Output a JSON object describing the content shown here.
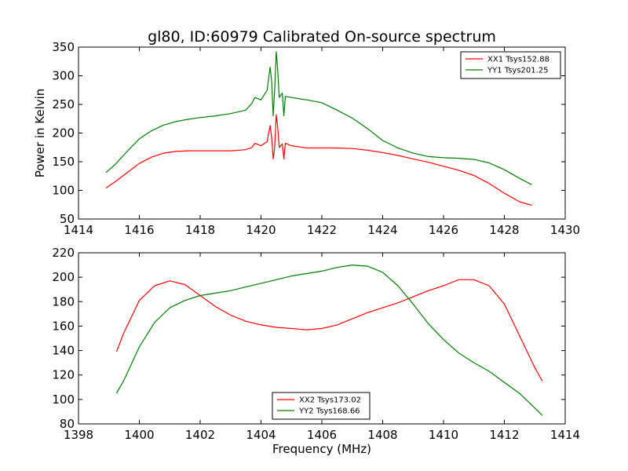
{
  "title": "gl80, ID:60979 Calibrated On-source spectrum",
  "colors": {
    "red": "#ff0000",
    "green": "#007f00"
  },
  "chart_data": [
    {
      "type": "line",
      "title": "gl80, ID:60979 Calibrated On-source spectrum",
      "xlabel": "",
      "ylabel": "Power in Kelvin",
      "xlim": [
        1414,
        1430
      ],
      "ylim": [
        50,
        350
      ],
      "xticks": [
        1414,
        1416,
        1418,
        1420,
        1422,
        1424,
        1426,
        1428,
        1430
      ],
      "yticks": [
        50,
        100,
        150,
        200,
        250,
        300,
        350
      ],
      "grid": false,
      "legend_position": "top-right",
      "series": [
        {
          "name": "XX1 Tsys152.88",
          "color": "#ff0000",
          "points": [
            [
              1414.9,
              104
            ],
            [
              1415.2,
              115
            ],
            [
              1415.6,
              131
            ],
            [
              1416.0,
              147
            ],
            [
              1416.4,
              158
            ],
            [
              1416.8,
              165
            ],
            [
              1417.2,
              168
            ],
            [
              1417.6,
              169
            ],
            [
              1418.0,
              169
            ],
            [
              1418.5,
              169
            ],
            [
              1419.0,
              169
            ],
            [
              1419.5,
              171
            ],
            [
              1419.7,
              175
            ],
            [
              1419.8,
              182
            ],
            [
              1420.0,
              178
            ],
            [
              1420.2,
              185
            ],
            [
              1420.3,
              213
            ],
            [
              1420.35,
              192
            ],
            [
              1420.4,
              155
            ],
            [
              1420.45,
              175
            ],
            [
              1420.5,
              232
            ],
            [
              1420.55,
              210
            ],
            [
              1420.6,
              175
            ],
            [
              1420.7,
              181
            ],
            [
              1420.75,
              155
            ],
            [
              1420.8,
              182
            ],
            [
              1421.0,
              178
            ],
            [
              1421.5,
              174
            ],
            [
              1422.0,
              174
            ],
            [
              1422.5,
              174
            ],
            [
              1423.0,
              173
            ],
            [
              1423.5,
              170
            ],
            [
              1424.0,
              166
            ],
            [
              1424.5,
              161
            ],
            [
              1425.0,
              155
            ],
            [
              1425.5,
              149
            ],
            [
              1426.0,
              142
            ],
            [
              1426.5,
              135
            ],
            [
              1427.0,
              126
            ],
            [
              1427.5,
              112
            ],
            [
              1428.0,
              95
            ],
            [
              1428.5,
              80
            ],
            [
              1428.9,
              74
            ]
          ]
        },
        {
          "name": "YY1 Tsys201.25",
          "color": "#007f00",
          "points": [
            [
              1414.9,
              131
            ],
            [
              1415.2,
              145
            ],
            [
              1415.6,
              168
            ],
            [
              1416.0,
              190
            ],
            [
              1416.4,
              204
            ],
            [
              1416.8,
              214
            ],
            [
              1417.2,
              220
            ],
            [
              1417.6,
              224
            ],
            [
              1418.0,
              227
            ],
            [
              1418.5,
              230
            ],
            [
              1419.0,
              234
            ],
            [
              1419.5,
              240
            ],
            [
              1419.7,
              252
            ],
            [
              1419.8,
              262
            ],
            [
              1420.0,
              258
            ],
            [
              1420.2,
              275
            ],
            [
              1420.3,
              315
            ],
            [
              1420.35,
              290
            ],
            [
              1420.4,
              230
            ],
            [
              1420.45,
              275
            ],
            [
              1420.5,
              342
            ],
            [
              1420.55,
              310
            ],
            [
              1420.6,
              262
            ],
            [
              1420.7,
              270
            ],
            [
              1420.75,
              230
            ],
            [
              1420.8,
              264
            ],
            [
              1421.0,
              262
            ],
            [
              1421.5,
              258
            ],
            [
              1422.0,
              253
            ],
            [
              1422.5,
              240
            ],
            [
              1423.0,
              226
            ],
            [
              1423.5,
              208
            ],
            [
              1424.0,
              187
            ],
            [
              1424.5,
              174
            ],
            [
              1425.0,
              165
            ],
            [
              1425.5,
              159
            ],
            [
              1426.0,
              157
            ],
            [
              1426.5,
              156
            ],
            [
              1427.0,
              154
            ],
            [
              1427.5,
              148
            ],
            [
              1428.0,
              136
            ],
            [
              1428.5,
              121
            ],
            [
              1428.9,
              110
            ]
          ]
        }
      ]
    },
    {
      "type": "line",
      "title": "",
      "xlabel": "Frequency (MHz)",
      "ylabel": "",
      "xlim": [
        1398,
        1414
      ],
      "ylim": [
        80,
        220
      ],
      "xticks": [
        1398,
        1400,
        1402,
        1404,
        1406,
        1408,
        1410,
        1412,
        1414
      ],
      "yticks": [
        80,
        100,
        120,
        140,
        160,
        180,
        200,
        220
      ],
      "grid": false,
      "legend_position": "bottom-center",
      "series": [
        {
          "name": "XX2 Tsys173.02",
          "color": "#ff0000",
          "points": [
            [
              1399.25,
              139
            ],
            [
              1399.5,
              155
            ],
            [
              1400.0,
              181
            ],
            [
              1400.5,
              193
            ],
            [
              1401.0,
              197
            ],
            [
              1401.5,
              194
            ],
            [
              1402.0,
              185
            ],
            [
              1402.5,
              176
            ],
            [
              1403.0,
              169
            ],
            [
              1403.5,
              164
            ],
            [
              1404.0,
              161
            ],
            [
              1404.5,
              159
            ],
            [
              1405.0,
              158
            ],
            [
              1405.5,
              157
            ],
            [
              1406.0,
              158
            ],
            [
              1406.5,
              161
            ],
            [
              1407.0,
              166
            ],
            [
              1407.5,
              171
            ],
            [
              1408.0,
              175
            ],
            [
              1408.5,
              179
            ],
            [
              1409.0,
              184
            ],
            [
              1409.5,
              189
            ],
            [
              1410.0,
              193
            ],
            [
              1410.5,
              198
            ],
            [
              1411.0,
              198
            ],
            [
              1411.5,
              193
            ],
            [
              1412.0,
              178
            ],
            [
              1412.5,
              152
            ],
            [
              1413.0,
              126
            ],
            [
              1413.25,
              115
            ]
          ]
        },
        {
          "name": "YY2 Tsys168.66",
          "color": "#007f00",
          "points": [
            [
              1399.25,
              105
            ],
            [
              1399.5,
              116
            ],
            [
              1400.0,
              143
            ],
            [
              1400.5,
              163
            ],
            [
              1401.0,
              175
            ],
            [
              1401.5,
              181
            ],
            [
              1402.0,
              185
            ],
            [
              1402.5,
              187
            ],
            [
              1403.0,
              189
            ],
            [
              1403.5,
              192
            ],
            [
              1404.0,
              195
            ],
            [
              1404.5,
              198
            ],
            [
              1405.0,
              201
            ],
            [
              1405.5,
              203
            ],
            [
              1406.0,
              205
            ],
            [
              1406.5,
              208
            ],
            [
              1407.0,
              210
            ],
            [
              1407.5,
              209
            ],
            [
              1408.0,
              204
            ],
            [
              1408.5,
              193
            ],
            [
              1409.0,
              178
            ],
            [
              1409.5,
              162
            ],
            [
              1410.0,
              149
            ],
            [
              1410.5,
              138
            ],
            [
              1411.0,
              130
            ],
            [
              1411.5,
              123
            ],
            [
              1412.0,
              114
            ],
            [
              1412.5,
              105
            ],
            [
              1413.0,
              93
            ],
            [
              1413.25,
              87
            ]
          ]
        }
      ]
    }
  ]
}
